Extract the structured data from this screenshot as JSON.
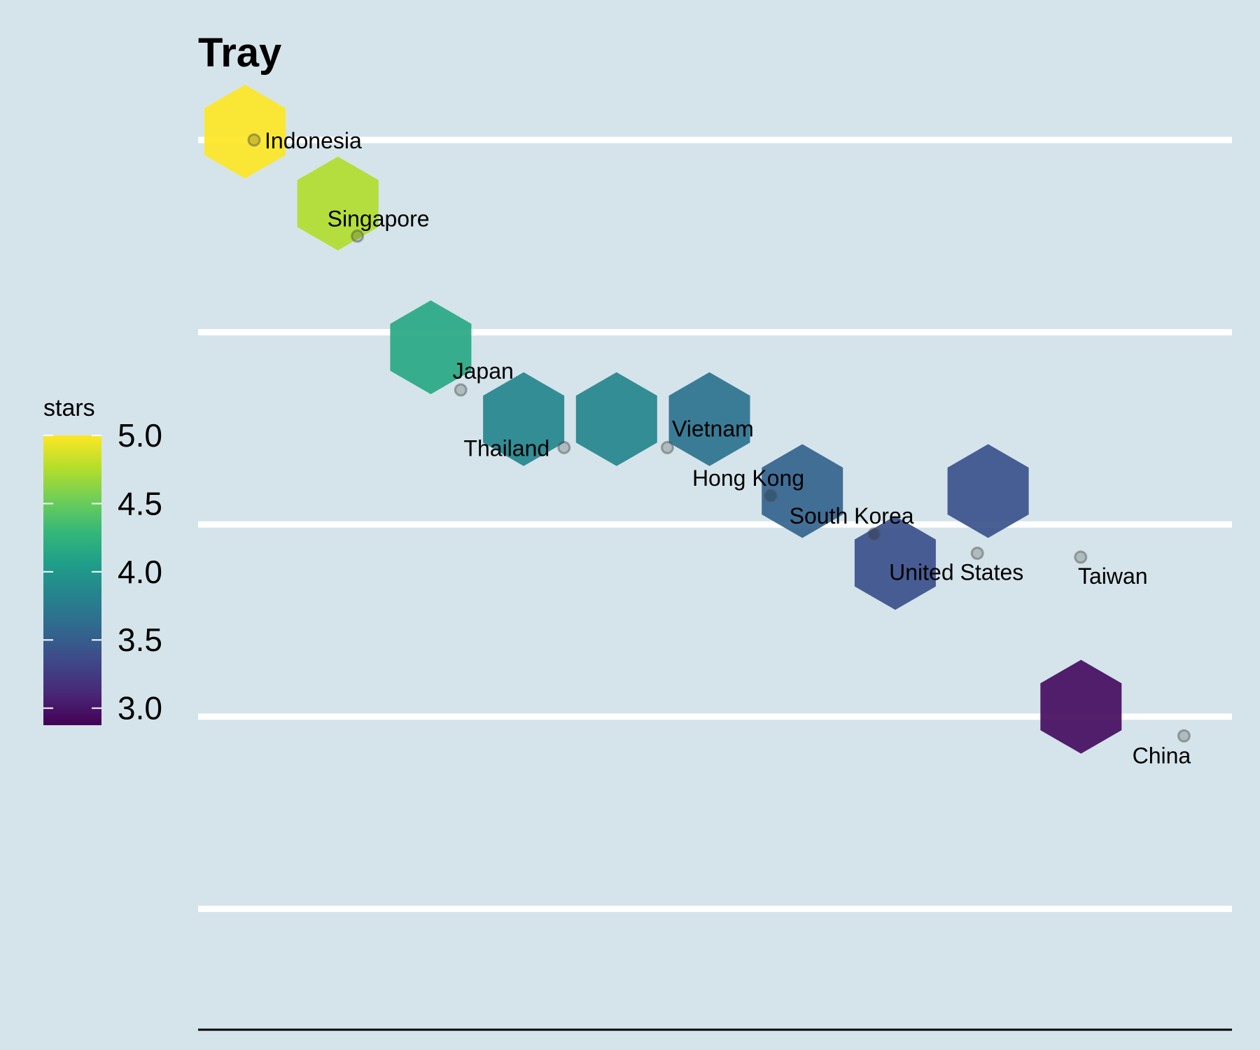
{
  "chart_data": {
    "type": "scatter",
    "title": "Tray",
    "xlabel": "",
    "ylabel": "",
    "grid": true,
    "legend": {
      "title": "stars",
      "position": "left",
      "range": [
        2.875,
        5.0
      ],
      "ticks": [
        5.0,
        4.5,
        4.0,
        3.5,
        3.0
      ],
      "tick_labels": [
        "5.0",
        "4.5",
        "4.0",
        "3.5",
        "3.0"
      ],
      "colormap": [
        "#440154",
        "#482878",
        "#3e4989",
        "#31688e",
        "#26828e",
        "#1f9e89",
        "#35b779",
        "#6ece58",
        "#b5de2b",
        "#fde725"
      ]
    },
    "series": [
      {
        "points": [
          {
            "label": "Indonesia",
            "x": 1,
            "y": 5.0,
            "stars": 5.0
          },
          {
            "label": "Singapore",
            "x": 2,
            "y": 4.5,
            "stars": 4.75
          },
          {
            "label": "Japan",
            "x": 3,
            "y": 3.7,
            "stars": 4.15
          },
          {
            "label": "Thailand",
            "x": 4,
            "y": 3.4,
            "stars": 3.85
          },
          {
            "label": "Vietnam",
            "x": 5,
            "y": 3.4,
            "stars": 3.85
          },
          {
            "label": "Hong Kong",
            "x": 6,
            "y": 3.15,
            "stars": 3.68
          },
          {
            "label": "South Korea",
            "x": 7,
            "y": 2.95,
            "stars": 3.55
          },
          {
            "label": "United States",
            "x": 8,
            "y": 2.85,
            "stars": 3.4
          },
          {
            "label": "Taiwan",
            "x": 9,
            "y": 2.83,
            "stars": 3.42
          },
          {
            "label": "China",
            "x": 10,
            "y": 1.9,
            "stars": 2.95
          }
        ]
      }
    ],
    "hexagons": [
      {
        "col": 1,
        "row": 0,
        "stars": 5.0
      },
      {
        "col": 2,
        "row": 1,
        "stars": 4.75
      },
      {
        "col": 3,
        "row": 3,
        "stars": 4.15
      },
      {
        "col": 4,
        "row": 4,
        "stars": 3.85
      },
      {
        "col": 5,
        "row": 4,
        "stars": 3.85
      },
      {
        "col": 6,
        "row": 4,
        "stars": 3.68
      },
      {
        "col": 7,
        "row": 5,
        "stars": 3.55
      },
      {
        "col": 8,
        "row": 6,
        "stars": 3.4
      },
      {
        "col": 9,
        "row": 5,
        "stars": 3.42
      },
      {
        "col": 10,
        "row": 8,
        "stars": 2.95
      }
    ]
  }
}
